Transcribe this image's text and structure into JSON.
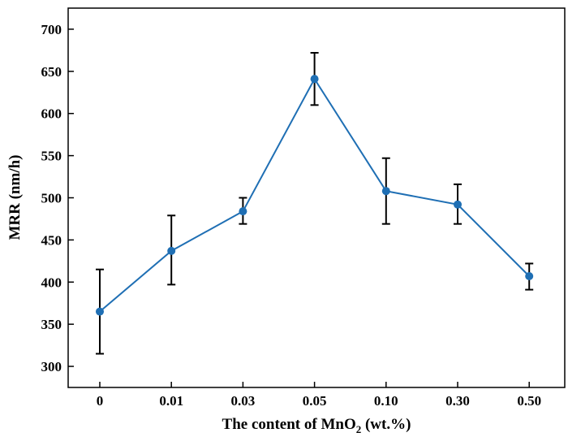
{
  "chart_data": {
    "type": "line",
    "title": "",
    "xlabel": "The content of MnO",
    "xlabel_subscript": "2",
    "xlabel_suffix": " (wt.%)",
    "ylabel": "MRR (nm/h)",
    "categories": [
      "0",
      "0.01",
      "0.03",
      "0.05",
      "0.10",
      "0.30",
      "0.50"
    ],
    "yticks": [
      300,
      350,
      400,
      450,
      500,
      550,
      600,
      650,
      700
    ],
    "ylim": [
      275,
      725
    ],
    "series": [
      {
        "values": [
          365,
          437,
          484,
          641,
          508,
          492,
          407
        ],
        "error_high": [
          415,
          479,
          500,
          672,
          547,
          516,
          422
        ],
        "error_low": [
          315,
          397,
          469,
          610,
          469,
          469,
          391
        ],
        "color": "#1f6fb4"
      }
    ],
    "grid": false,
    "legend": "none",
    "error_bar_color": "#000000"
  }
}
